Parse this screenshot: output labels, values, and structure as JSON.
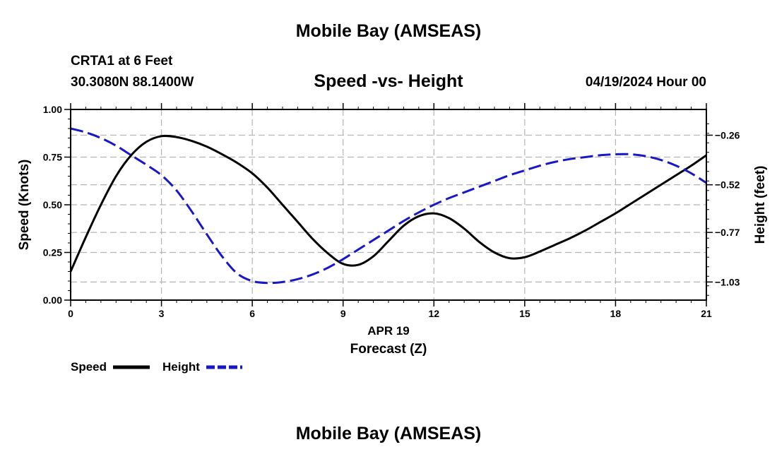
{
  "page": {
    "title": "Mobile Bay (AMSEAS)",
    "footer_title": "Mobile Bay (AMSEAS)",
    "station": "CRTA1 at 6 Feet",
    "coords": "30.3080N  88.1400W",
    "date": "04/19/2024 Hour 00"
  },
  "chart_data": {
    "type": "line",
    "title": "Speed -vs- Height",
    "xlabel": "Forecast (Z)",
    "xlabel_date": "APR 19",
    "ylabel": "Speed (Knots)",
    "y2label": "Height (feet)",
    "xlim": [
      0,
      21
    ],
    "ylim": [
      0,
      1
    ],
    "y2lim": [
      -1.125,
      -0.125
    ],
    "x_ticks": [
      0,
      3,
      6,
      9,
      12,
      15,
      18,
      21
    ],
    "x_tick_labels": [
      "0",
      "3",
      "6",
      "9",
      "12",
      "15",
      "18",
      "21"
    ],
    "y_ticks": [
      0,
      0.25,
      0.5,
      0.75,
      1.0
    ],
    "y_tick_labels": [
      "0.00",
      "0.25",
      "0.50",
      "0.75",
      "1.00"
    ],
    "y2_ticks": [
      -0.26,
      -0.52,
      -0.77,
      -1.03
    ],
    "y2_tick_labels": [
      "−0.26",
      "−0.52",
      "−0.77",
      "−1.03"
    ],
    "grid": true,
    "legend_position": "bottom-left",
    "series": [
      {
        "name": "Speed",
        "axis": "left",
        "color": "#000000",
        "dash": "solid",
        "x": [
          0,
          0.5,
          1,
          1.5,
          2,
          2.5,
          3,
          3.5,
          4,
          4.5,
          5,
          5.5,
          6,
          6.5,
          7,
          7.5,
          8,
          8.5,
          9,
          9.5,
          10,
          10.5,
          11,
          11.5,
          12,
          12.5,
          13,
          13.5,
          14,
          14.5,
          15,
          15.5,
          16,
          16.5,
          17,
          17.5,
          18,
          18.5,
          19,
          19.5,
          20,
          20.5,
          21
        ],
        "y": [
          0.15,
          0.33,
          0.5,
          0.65,
          0.76,
          0.83,
          0.86,
          0.855,
          0.835,
          0.805,
          0.765,
          0.72,
          0.665,
          0.59,
          0.5,
          0.41,
          0.32,
          0.245,
          0.19,
          0.185,
          0.23,
          0.31,
          0.39,
          0.44,
          0.455,
          0.43,
          0.375,
          0.305,
          0.25,
          0.22,
          0.225,
          0.255,
          0.29,
          0.325,
          0.365,
          0.41,
          0.455,
          0.505,
          0.555,
          0.605,
          0.655,
          0.705,
          0.76
        ]
      },
      {
        "name": "Height",
        "axis": "right",
        "color": "#1818c8",
        "dash": "dashed",
        "x": [
          0,
          0.5,
          1,
          1.5,
          2,
          2.5,
          3,
          3.5,
          4,
          4.5,
          5,
          5.5,
          6,
          6.5,
          7,
          7.5,
          8,
          8.5,
          9,
          9.5,
          10,
          10.5,
          11,
          11.5,
          12,
          12.5,
          13,
          13.5,
          14,
          14.5,
          15,
          15.5,
          16,
          16.5,
          17,
          17.5,
          18,
          18.5,
          19,
          19.5,
          20,
          20.5,
          21
        ],
        "y": [
          -0.225,
          -0.245,
          -0.275,
          -0.315,
          -0.365,
          -0.415,
          -0.47,
          -0.55,
          -0.66,
          -0.78,
          -0.895,
          -0.985,
          -1.025,
          -1.035,
          -1.03,
          -1.015,
          -0.99,
          -0.955,
          -0.91,
          -0.86,
          -0.81,
          -0.76,
          -0.71,
          -0.665,
          -0.625,
          -0.59,
          -0.56,
          -0.53,
          -0.5,
          -0.47,
          -0.445,
          -0.42,
          -0.4,
          -0.385,
          -0.375,
          -0.365,
          -0.36,
          -0.36,
          -0.37,
          -0.39,
          -0.42,
          -0.46,
          -0.51
        ]
      }
    ]
  }
}
